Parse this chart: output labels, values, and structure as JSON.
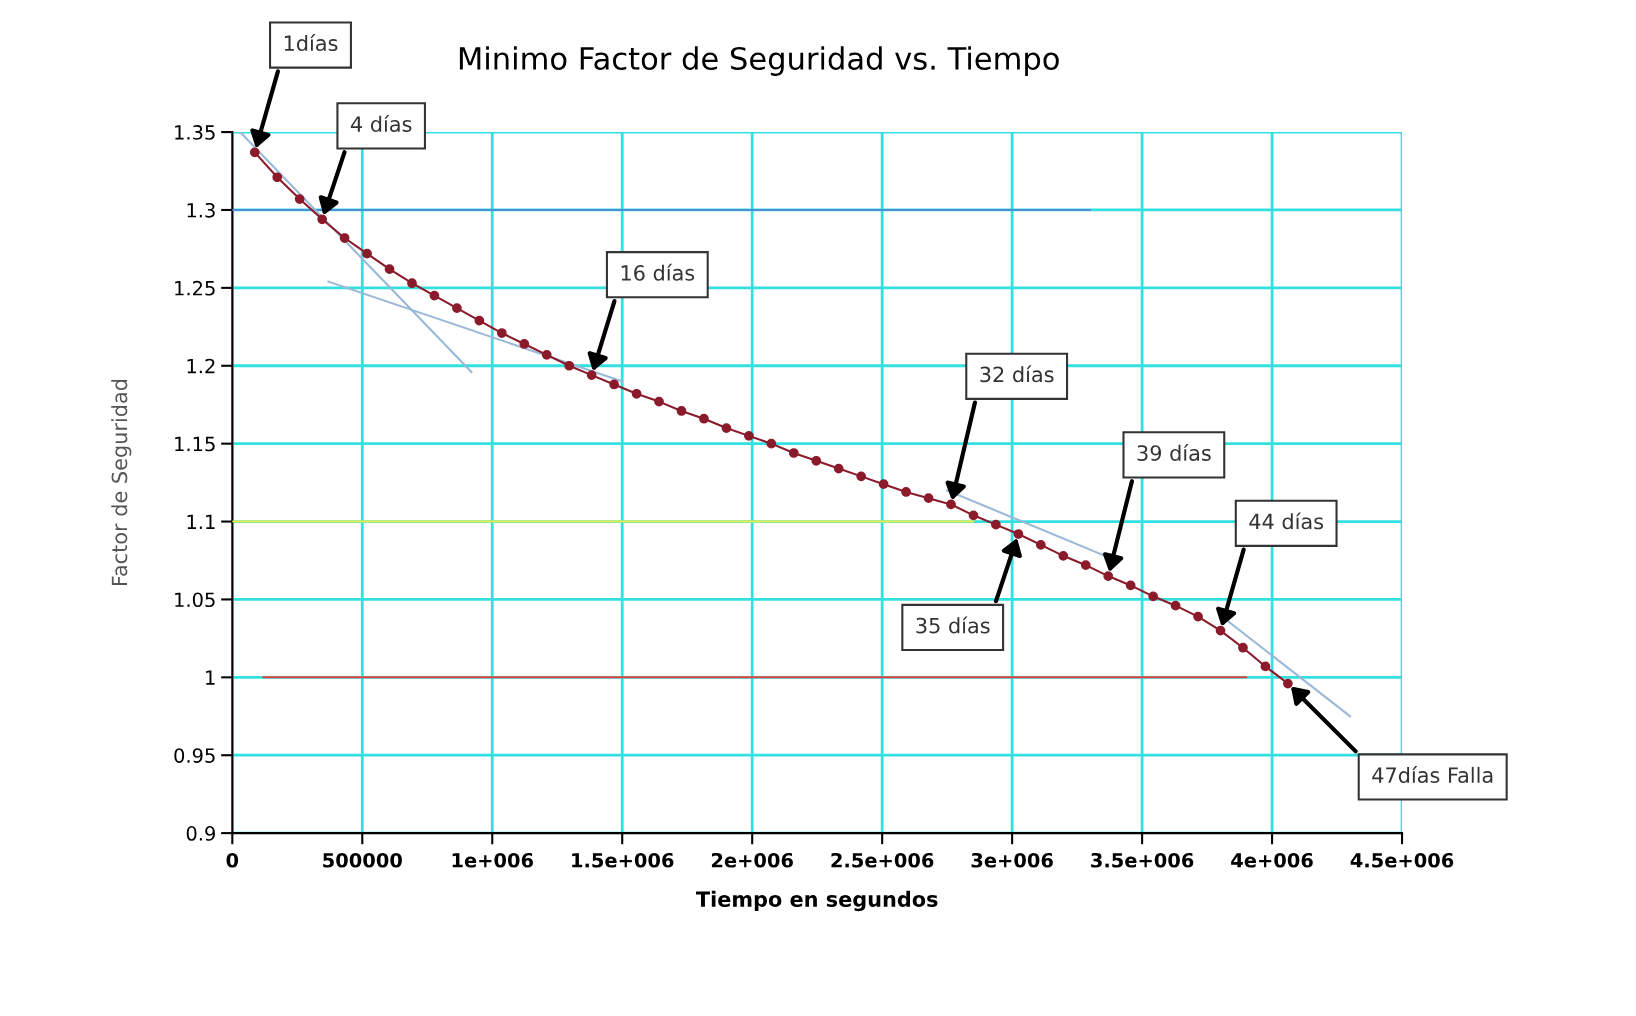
{
  "chart_data": {
    "type": "line",
    "title": "Minimo Factor de Seguridad vs. Tiempo",
    "xlabel": "Tiempo en segundos",
    "ylabel": "Factor de Seguridad",
    "xlim": [
      0,
      4500000
    ],
    "ylim": [
      0.9,
      1.35
    ],
    "xticks": [
      0,
      500000,
      {
        "value": 1000000,
        "label": "1e+006"
      },
      {
        "value": 1500000,
        "label": "1.5e+006"
      },
      {
        "value": 2000000,
        "label": "2e+006"
      },
      {
        "value": 2500000,
        "label": "2.5e+006"
      },
      {
        "value": 3000000,
        "label": "3e+006"
      },
      {
        "value": 3500000,
        "label": "3.5e+006"
      },
      {
        "value": 4000000,
        "label": "4e+006"
      },
      {
        "value": 4500000,
        "label": "4.5e+006"
      }
    ],
    "yticks": [
      0.9,
      0.95,
      1,
      1.05,
      1.1,
      1.15,
      1.2,
      1.25,
      1.3,
      1.35
    ],
    "grid": true,
    "legend": false,
    "series": [
      {
        "color": "#4a90d9",
        "x": [
          0,
          3300000
        ],
        "values": [
          1.3,
          1.3
        ]
      },
      {
        "color": "#f0f040",
        "x": [
          0,
          2850000
        ],
        "values": [
          1.1,
          1.1
        ]
      },
      {
        "color": "#e04040",
        "x": [
          120000,
          3900000
        ],
        "values": [
          1.0,
          1.0
        ]
      },
      {
        "color": "#9ab8d8",
        "x": [
          30000,
          920000
        ],
        "values": [
          1.35,
          1.196
        ]
      },
      {
        "color": "#9ab8d8",
        "x": [
          370000,
          1500000
        ],
        "values": [
          1.254,
          1.19
        ]
      },
      {
        "color": "#9ab8d8",
        "x": [
          2750000,
          3400000
        ],
        "values": [
          1.12,
          1.075
        ]
      },
      {
        "color": "#9ab8d8",
        "x": [
          3800000,
          4300000
        ],
        "values": [
          1.04,
          0.975
        ]
      },
      {
        "color": "#8b1a2b",
        "marker": "circle",
        "x": [
          86400,
          172800,
          259200,
          345600,
          432000,
          518400,
          604800,
          691200,
          777600,
          864000,
          950400,
          1036800,
          1123200,
          1209600,
          1296000,
          1382400,
          1468800,
          1555200,
          1641600,
          1728000,
          1814400,
          1900800,
          1987200,
          2073600,
          2160000,
          2246400,
          2332800,
          2419200,
          2505600,
          2592000,
          2678400,
          2764800,
          2851200,
          2937600,
          3024000,
          3110400,
          3196800,
          3283200,
          3369600,
          3456000,
          3542400,
          3628800,
          3715200,
          3801600,
          3888000,
          3974400,
          4060800
        ],
        "values": [
          1.337,
          1.321,
          1.307,
          1.294,
          1.282,
          1.272,
          1.262,
          1.253,
          1.245,
          1.237,
          1.229,
          1.221,
          1.214,
          1.207,
          1.2,
          1.194,
          1.188,
          1.182,
          1.177,
          1.171,
          1.166,
          1.16,
          1.155,
          1.15,
          1.144,
          1.139,
          1.134,
          1.129,
          1.124,
          1.119,
          1.115,
          1.111,
          1.104,
          1.098,
          1.092,
          1.085,
          1.078,
          1.072,
          1.065,
          1.059,
          1.052,
          1.046,
          1.039,
          1.03,
          1.019,
          1.007,
          0.996
        ]
      }
    ],
    "annotations": [
      {
        "text": "1días",
        "x": 86400,
        "y": 1.337
      },
      {
        "text": "4 días",
        "x": 345600,
        "y": 1.294
      },
      {
        "text": "16 días",
        "x": 1382400,
        "y": 1.194
      },
      {
        "text": "32 días",
        "x": 2764800,
        "y": 1.111
      },
      {
        "text": "35 días",
        "x": 3024000,
        "y": 1.092
      },
      {
        "text": "39 días",
        "x": 3369600,
        "y": 1.065
      },
      {
        "text": "44 días",
        "x": 3801600,
        "y": 1.03
      },
      {
        "text": "47días Falla",
        "x": 4060800,
        "y": 0.996
      }
    ]
  }
}
